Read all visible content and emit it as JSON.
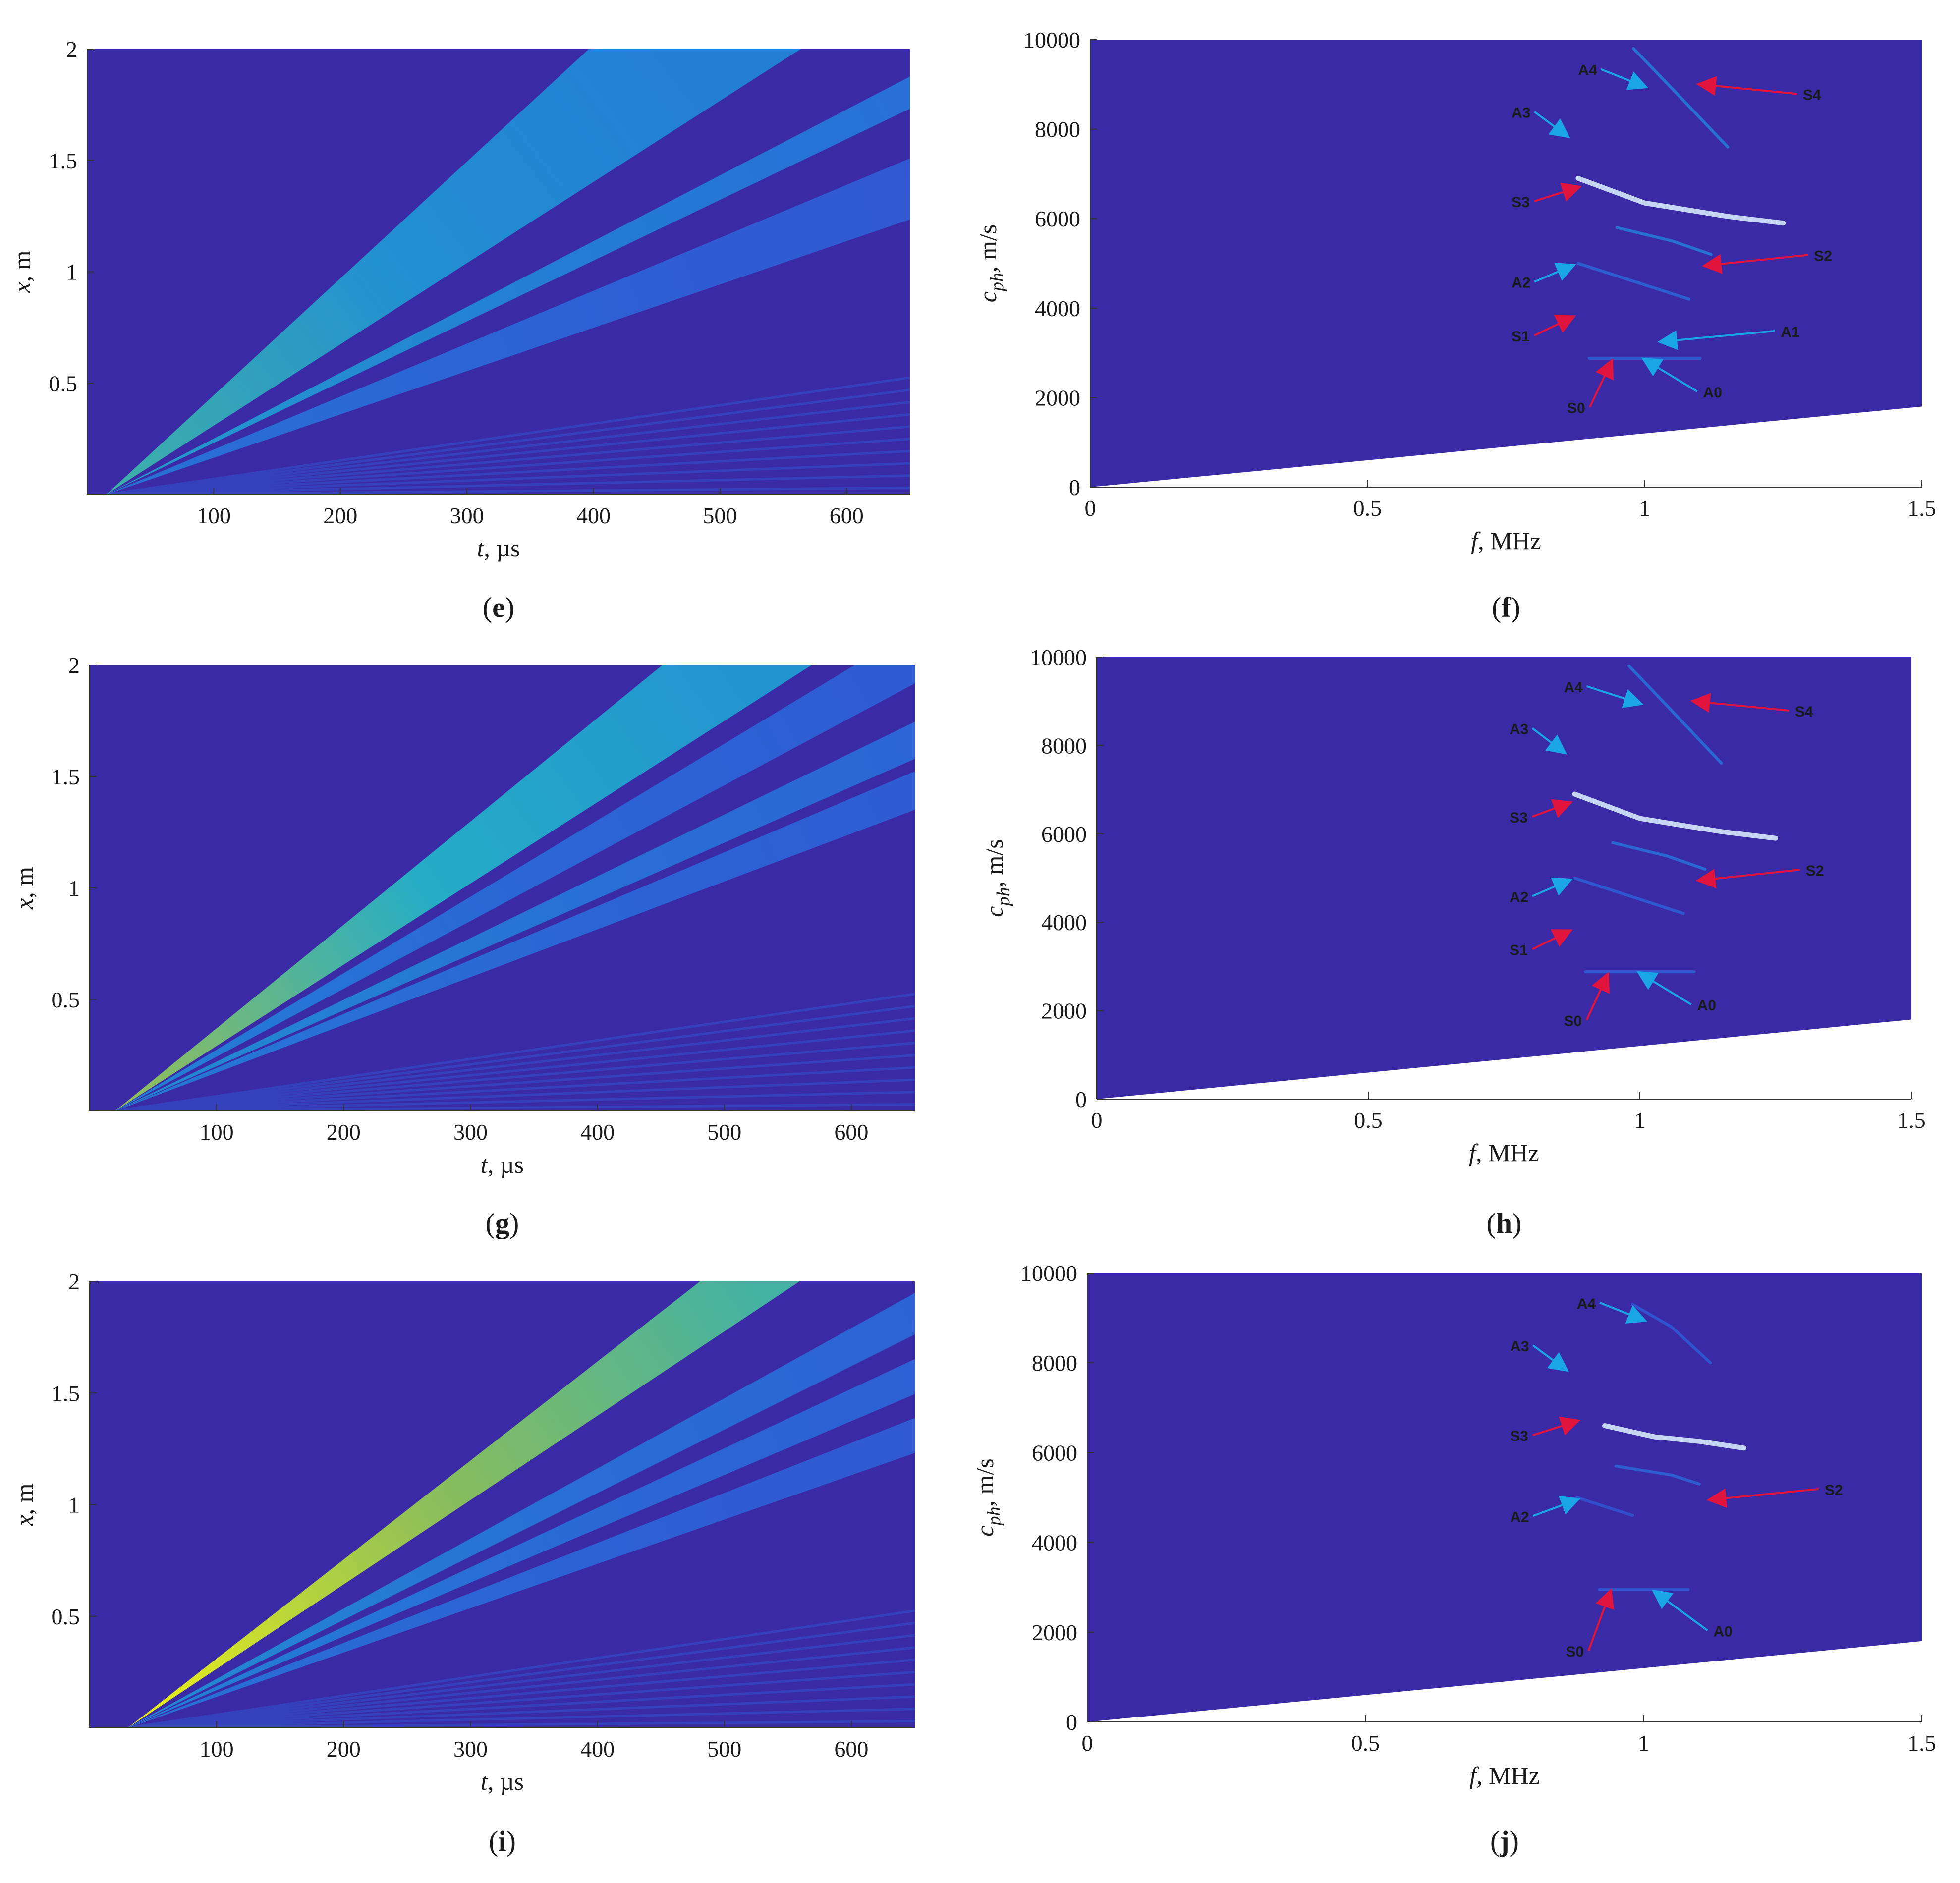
{
  "chart_data": [
    {
      "panel": "e",
      "caption": "(e)",
      "type": "heatmap",
      "xlabel_var": "t",
      "xlabel_unit": ", µs",
      "ylabel_var": "x",
      "ylabel_unit": ", m",
      "xlim": [
        0,
        650
      ],
      "ylim": [
        0,
        2
      ],
      "xticks": [
        100,
        200,
        300,
        400,
        500,
        600
      ],
      "xtick_labels": [
        "100",
        "200",
        "300",
        "400",
        "500",
        "600"
      ],
      "yticks": [
        0.5,
        1,
        1.5,
        2
      ],
      "ytick_labels": [
        "0.5",
        "1",
        "1.5",
        "2"
      ],
      "wave_start_t": 15,
      "colormap": [
        "#3d26a8",
        "#2f5bd6",
        "#1f8ad8",
        "#24b3c8",
        "#7cc35e",
        "#d9cf3a",
        "#f9fb0e"
      ],
      "background_color": "#3b2aa5",
      "bands": [
        {
          "arrival_t_at_x2": 480,
          "width": 0.18,
          "intensity": 0.38
        },
        {
          "arrival_t_at_x2": 720,
          "width": 0.04,
          "intensity": 0.3
        },
        {
          "arrival_t_at_x2": 950,
          "width": 0.1,
          "intensity": 0.18
        }
      ]
    },
    {
      "panel": "f",
      "caption": "(f)",
      "type": "heatmap",
      "xlabel_var": "f",
      "xlabel_unit": ", MHz",
      "ylabel_var": "c",
      "ylabel_sub": "ph",
      "ylabel_unit": ", m/s",
      "xlim": [
        0,
        1.5
      ],
      "ylim": [
        0,
        10000
      ],
      "xticks": [
        0,
        0.5,
        1,
        1.5
      ],
      "xtick_labels": [
        "0",
        "0.5",
        "1",
        "1.5"
      ],
      "yticks": [
        0,
        2000,
        4000,
        6000,
        8000,
        10000
      ],
      "ytick_labels": [
        "0",
        "2000",
        "4000",
        "6000",
        "8000",
        "10000"
      ],
      "cutoff_cph_at_fmax": 1800,
      "background_color": "#3b2aa5",
      "modes": [
        {
          "points": [
            [
              0.98,
              9800
            ],
            [
              1.05,
              8900
            ],
            [
              1.15,
              7600
            ]
          ],
          "intensity": 0.35
        },
        {
          "points": [
            [
              0.88,
              6900
            ],
            [
              1.0,
              6350
            ],
            [
              1.15,
              6050
            ],
            [
              1.25,
              5900
            ]
          ],
          "intensity": 0.9
        },
        {
          "points": [
            [
              0.95,
              5800
            ],
            [
              1.05,
              5500
            ],
            [
              1.12,
              5200
            ]
          ],
          "intensity": 0.35
        },
        {
          "points": [
            [
              0.88,
              5000
            ],
            [
              0.98,
              4600
            ],
            [
              1.08,
              4200
            ]
          ],
          "intensity": 0.25
        },
        {
          "points": [
            [
              0.9,
              2880
            ],
            [
              1.1,
              2880
            ]
          ],
          "intensity": 0.25
        }
      ],
      "annotations": [
        {
          "label": "A4",
          "color": "#1aa5e6",
          "text_xy": [
            0.88,
            9250
          ],
          "arrow_to": [
            1.0,
            8950
          ],
          "label_side": "left"
        },
        {
          "label": "S4",
          "color": "#e0143c",
          "text_xy": [
            1.28,
            8700
          ],
          "arrow_to": [
            1.1,
            9000
          ],
          "label_side": "right"
        },
        {
          "label": "A3",
          "color": "#1aa5e6",
          "text_xy": [
            0.76,
            8300
          ],
          "arrow_to": [
            0.86,
            7850
          ],
          "label_side": "left"
        },
        {
          "label": "S3",
          "color": "#e0143c",
          "text_xy": [
            0.76,
            6300
          ],
          "arrow_to": [
            0.88,
            6700
          ],
          "label_side": "left"
        },
        {
          "label": "S2",
          "color": "#e0143c",
          "text_xy": [
            1.3,
            5100
          ],
          "arrow_to": [
            1.11,
            4950
          ],
          "label_side": "right"
        },
        {
          "label": "A2",
          "color": "#1aa5e6",
          "text_xy": [
            0.76,
            4500
          ],
          "arrow_to": [
            0.87,
            4950
          ],
          "label_side": "left"
        },
        {
          "label": "A1",
          "color": "#1aa5e6",
          "text_xy": [
            1.24,
            3400
          ],
          "arrow_to": [
            1.03,
            3250
          ],
          "label_side": "right"
        },
        {
          "label": "S1",
          "color": "#e0143c",
          "text_xy": [
            0.76,
            3300
          ],
          "arrow_to": [
            0.87,
            3800
          ],
          "label_side": "left"
        },
        {
          "label": "A0",
          "color": "#1aa5e6",
          "text_xy": [
            1.1,
            2050
          ],
          "arrow_to": [
            1.0,
            2850
          ],
          "label_side": "right"
        },
        {
          "label": "S0",
          "color": "#e0143c",
          "text_xy": [
            0.86,
            1700
          ],
          "arrow_to": [
            0.94,
            2800
          ],
          "label_side": "left"
        }
      ]
    },
    {
      "panel": "g",
      "caption": "(g)",
      "type": "heatmap",
      "xlabel_var": "t",
      "xlabel_unit": ", µs",
      "ylabel_var": "x",
      "ylabel_unit": ", m",
      "xlim": [
        0,
        650
      ],
      "ylim": [
        0,
        2
      ],
      "xticks": [
        100,
        200,
        300,
        400,
        500,
        600
      ],
      "xtick_labels": [
        "100",
        "200",
        "300",
        "400",
        "500",
        "600"
      ],
      "yticks": [
        0.5,
        1,
        1.5,
        2
      ],
      "ytick_labels": [
        "0.5",
        "1",
        "1.5",
        "2"
      ],
      "wave_start_t": 20,
      "colormap": [
        "#3d26a8",
        "#2f5bd6",
        "#1f8ad8",
        "#24b3c8",
        "#7cc35e",
        "#d9cf3a",
        "#f9fb0e"
      ],
      "background_color": "#3b2aa5",
      "bands": [
        {
          "arrival_t_at_x2": 510,
          "width": 0.12,
          "intensity": 0.5
        },
        {
          "arrival_t_at_x2": 640,
          "width": 0.06,
          "intensity": 0.22
        },
        {
          "arrival_t_at_x2": 780,
          "width": 0.05,
          "intensity": 0.25
        },
        {
          "arrival_t_at_x2": 900,
          "width": 0.06,
          "intensity": 0.2
        }
      ]
    },
    {
      "panel": "h",
      "caption": "(h)",
      "type": "heatmap",
      "xlabel_var": "f",
      "xlabel_unit": ", MHz",
      "ylabel_var": "c",
      "ylabel_sub": "ph",
      "ylabel_unit": ", m/s",
      "xlim": [
        0,
        1.5
      ],
      "ylim": [
        0,
        10000
      ],
      "xticks": [
        0,
        0.5,
        1,
        1.5
      ],
      "xtick_labels": [
        "0",
        "0.5",
        "1",
        "1.5"
      ],
      "yticks": [
        0,
        2000,
        4000,
        6000,
        8000,
        10000
      ],
      "ytick_labels": [
        "0",
        "2000",
        "4000",
        "6000",
        "8000",
        "10000"
      ],
      "cutoff_cph_at_fmax": 1800,
      "background_color": "#3b2aa5",
      "modes": [
        {
          "points": [
            [
              0.98,
              9800
            ],
            [
              1.05,
              8900
            ],
            [
              1.15,
              7600
            ]
          ],
          "intensity": 0.3
        },
        {
          "points": [
            [
              0.88,
              6900
            ],
            [
              1.0,
              6350
            ],
            [
              1.15,
              6050
            ],
            [
              1.25,
              5900
            ]
          ],
          "intensity": 0.9
        },
        {
          "points": [
            [
              0.95,
              5800
            ],
            [
              1.05,
              5500
            ],
            [
              1.12,
              5200
            ]
          ],
          "intensity": 0.3
        },
        {
          "points": [
            [
              0.88,
              5000
            ],
            [
              0.98,
              4600
            ],
            [
              1.08,
              4200
            ]
          ],
          "intensity": 0.22
        },
        {
          "points": [
            [
              0.9,
              2880
            ],
            [
              1.1,
              2880
            ]
          ],
          "intensity": 0.22
        }
      ],
      "annotations": [
        {
          "label": "A4",
          "color": "#1aa5e6",
          "text_xy": [
            0.86,
            9250
          ],
          "arrow_to": [
            1.0,
            8950
          ],
          "label_side": "left"
        },
        {
          "label": "S4",
          "color": "#e0143c",
          "text_xy": [
            1.28,
            8700
          ],
          "arrow_to": [
            1.1,
            9000
          ],
          "label_side": "right"
        },
        {
          "label": "A3",
          "color": "#1aa5e6",
          "text_xy": [
            0.76,
            8300
          ],
          "arrow_to": [
            0.86,
            7850
          ],
          "label_side": "left"
        },
        {
          "label": "S3",
          "color": "#e0143c",
          "text_xy": [
            0.76,
            6300
          ],
          "arrow_to": [
            0.87,
            6700
          ],
          "label_side": "left"
        },
        {
          "label": "S2",
          "color": "#e0143c",
          "text_xy": [
            1.3,
            5100
          ],
          "arrow_to": [
            1.11,
            4950
          ],
          "label_side": "right"
        },
        {
          "label": "A2",
          "color": "#1aa5e6",
          "text_xy": [
            0.76,
            4500
          ],
          "arrow_to": [
            0.87,
            4950
          ],
          "label_side": "left"
        },
        {
          "label": "S1",
          "color": "#e0143c",
          "text_xy": [
            0.76,
            3300
          ],
          "arrow_to": [
            0.87,
            3800
          ],
          "label_side": "left"
        },
        {
          "label": "A0",
          "color": "#1aa5e6",
          "text_xy": [
            1.1,
            2050
          ],
          "arrow_to": [
            1.0,
            2850
          ],
          "label_side": "right"
        },
        {
          "label": "S0",
          "color": "#e0143c",
          "text_xy": [
            0.86,
            1700
          ],
          "arrow_to": [
            0.94,
            2800
          ],
          "label_side": "left"
        }
      ]
    },
    {
      "panel": "i",
      "caption": "(i)",
      "type": "heatmap",
      "xlabel_var": "t",
      "xlabel_unit": ", µs",
      "ylabel_var": "x",
      "ylabel_unit": ", m",
      "xlim": [
        0,
        650
      ],
      "ylim": [
        0,
        2
      ],
      "xticks": [
        100,
        200,
        300,
        400,
        500,
        600
      ],
      "xtick_labels": [
        "100",
        "200",
        "300",
        "400",
        "500",
        "600"
      ],
      "yticks": [
        0.5,
        1,
        1.5,
        2
      ],
      "ytick_labels": [
        "0.5",
        "1",
        "1.5",
        "2"
      ],
      "wave_start_t": 30,
      "colormap": [
        "#3d26a8",
        "#2f5bd6",
        "#1f8ad8",
        "#24b3c8",
        "#7cc35e",
        "#d9cf3a",
        "#f9fb0e"
      ],
      "background_color": "#3b2aa5",
      "bands": [
        {
          "arrival_t_at_x2": 520,
          "width": 0.08,
          "intensity": 0.7
        },
        {
          "arrival_t_at_x2": 700,
          "width": 0.05,
          "intensity": 0.25
        },
        {
          "arrival_t_at_x2": 820,
          "width": 0.05,
          "intensity": 0.22
        },
        {
          "arrival_t_at_x2": 980,
          "width": 0.06,
          "intensity": 0.18
        }
      ]
    },
    {
      "panel": "j",
      "caption": "(j)",
      "type": "heatmap",
      "xlabel_var": "f",
      "xlabel_unit": ", MHz",
      "ylabel_var": "c",
      "ylabel_sub": "ph",
      "ylabel_unit": ", m/s",
      "xlim": [
        0,
        1.5
      ],
      "ylim": [
        0,
        10000
      ],
      "xticks": [
        0,
        0.5,
        1,
        1.5
      ],
      "xtick_labels": [
        "0",
        "0.5",
        "1",
        "1.5"
      ],
      "yticks": [
        0,
        2000,
        4000,
        6000,
        8000,
        10000
      ],
      "ytick_labels": [
        "0",
        "2000",
        "4000",
        "6000",
        "8000",
        "10000"
      ],
      "cutoff_cph_at_fmax": 1800,
      "background_color": "#3b2aa5",
      "modes": [
        {
          "points": [
            [
              0.98,
              9300
            ],
            [
              1.05,
              8800
            ],
            [
              1.12,
              8000
            ]
          ],
          "intensity": 0.2
        },
        {
          "points": [
            [
              0.93,
              6600
            ],
            [
              1.02,
              6350
            ],
            [
              1.1,
              6250
            ],
            [
              1.18,
              6100
            ]
          ],
          "intensity": 0.9
        },
        {
          "points": [
            [
              0.95,
              5700
            ],
            [
              1.05,
              5500
            ],
            [
              1.1,
              5300
            ]
          ],
          "intensity": 0.25
        },
        {
          "points": [
            [
              0.88,
              5000
            ],
            [
              0.98,
              4600
            ]
          ],
          "intensity": 0.18
        },
        {
          "points": [
            [
              0.92,
              2950
            ],
            [
              1.08,
              2950
            ]
          ],
          "intensity": 0.2
        }
      ],
      "annotations": [
        {
          "label": "A4",
          "color": "#1aa5e6",
          "text_xy": [
            0.88,
            9250
          ],
          "arrow_to": [
            1.0,
            8950
          ],
          "label_side": "left"
        },
        {
          "label": "A3",
          "color": "#1aa5e6",
          "text_xy": [
            0.76,
            8300
          ],
          "arrow_to": [
            0.86,
            7850
          ],
          "label_side": "left"
        },
        {
          "label": "S3",
          "color": "#e0143c",
          "text_xy": [
            0.76,
            6300
          ],
          "arrow_to": [
            0.88,
            6700
          ],
          "label_side": "left"
        },
        {
          "label": "S2",
          "color": "#e0143c",
          "text_xy": [
            1.32,
            5100
          ],
          "arrow_to": [
            1.12,
            4950
          ],
          "label_side": "right"
        },
        {
          "label": "A2",
          "color": "#1aa5e6",
          "text_xy": [
            0.76,
            4500
          ],
          "arrow_to": [
            0.88,
            4950
          ],
          "label_side": "left"
        },
        {
          "label": "A0",
          "color": "#1aa5e6",
          "text_xy": [
            1.12,
            1950
          ],
          "arrow_to": [
            1.02,
            2900
          ],
          "label_side": "right"
        },
        {
          "label": "S0",
          "color": "#e0143c",
          "text_xy": [
            0.86,
            1500
          ],
          "arrow_to": [
            0.94,
            2900
          ],
          "label_side": "left"
        }
      ]
    }
  ]
}
